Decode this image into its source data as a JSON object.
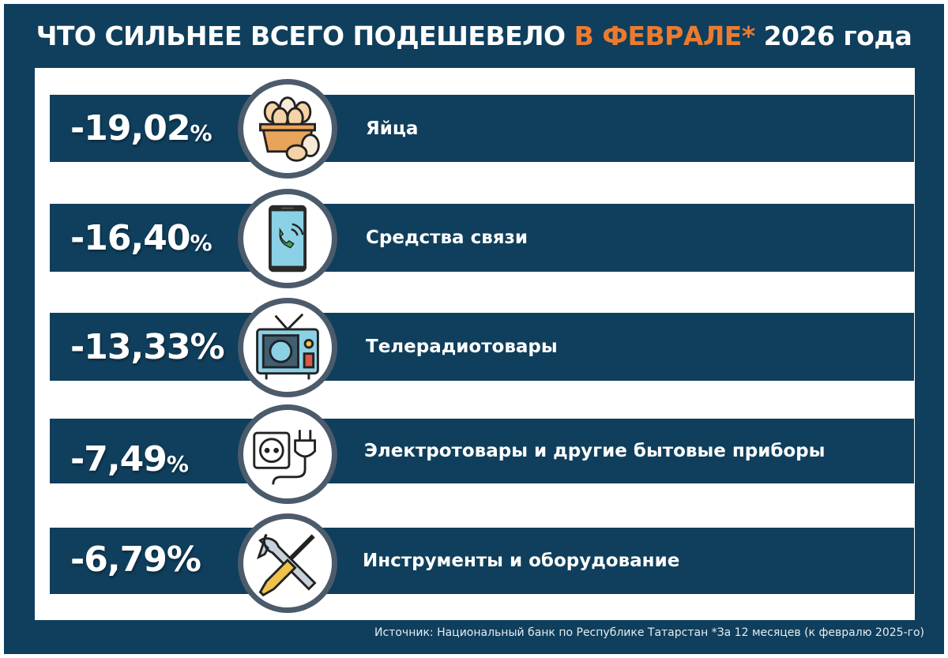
{
  "title": {
    "part1": "ЧТО СИЛЬНЕЕ ВСЕГО ПОДЕШЕВЕЛО ",
    "accent": "В ФЕВРАЛЕ*",
    "part2": " 2026 года"
  },
  "colors": {
    "navy": "#0f3f5c",
    "accent": "#ec7a30",
    "circle_border": "#4b5b6b"
  },
  "items": [
    {
      "value": "-19,02",
      "pct": "%",
      "label": "Яйца",
      "icon": "egg-basket-icon"
    },
    {
      "value": "-16,40",
      "pct": "%",
      "label": "Средства связи",
      "icon": "smartphone-call-icon"
    },
    {
      "value": "-13,33",
      "pct": "%",
      "label": "Телерадиотовары",
      "icon": "retro-tv-icon"
    },
    {
      "value": "-7,49",
      "pct": "%",
      "label": "Электротовары и другие бытовые приборы",
      "icon": "socket-plug-icon"
    },
    {
      "value": "-6,79",
      "pct": "%",
      "label": "Инструменты и оборудование",
      "icon": "wrench-screwdriver-icon"
    }
  ],
  "source": "Источник: Национальный банк по Республике Татарстан *За 12 месяцев (к февралю 2025-го)"
}
